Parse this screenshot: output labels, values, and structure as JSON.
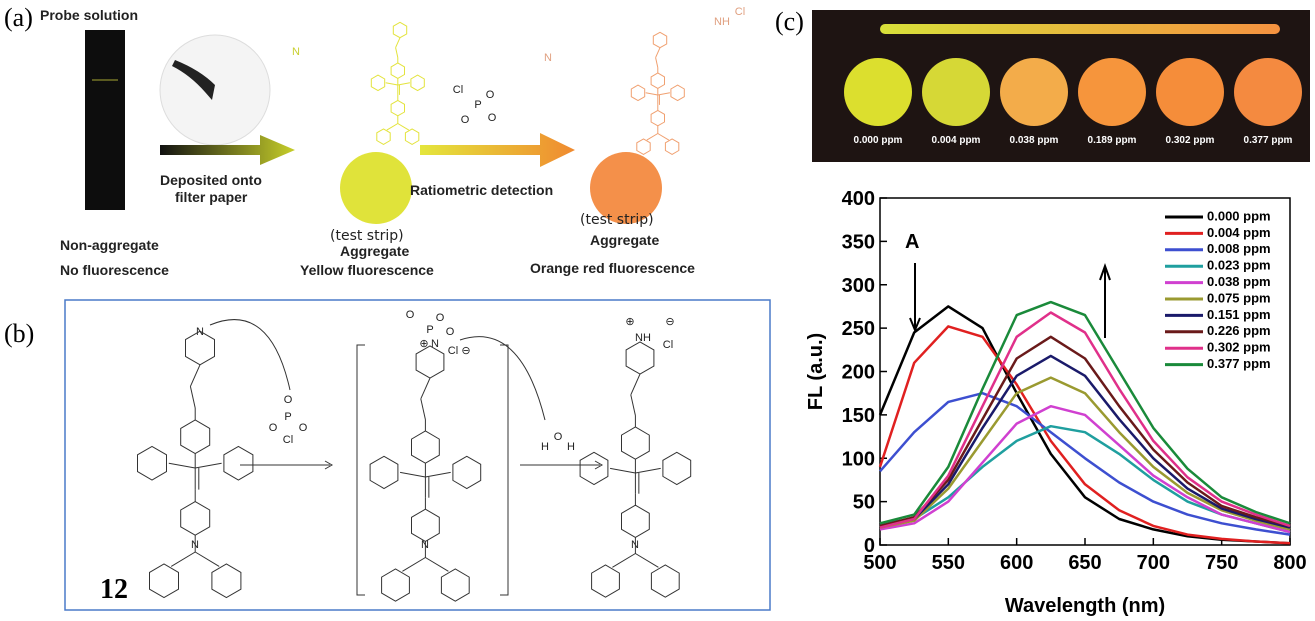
{
  "panel_a": {
    "label": "(a)",
    "probe_solution": "Probe solution",
    "deposited_line1": "Deposited onto",
    "deposited_line2": "filter paper",
    "ratiometric": "Ratiometric detection",
    "test_strip_1": "(test strip)",
    "test_strip_2": "(test strip)",
    "aggregate_1": "Aggregate",
    "aggregate_2": "Aggregate",
    "non_aggregate": "Non-aggregate",
    "no_fluorescence": "No fluorescence",
    "yellow_fluorescence": "Yellow fluorescence",
    "orange_fluorescence": "Orange red fluorescence",
    "atoms": [
      "Cl",
      "P",
      "O",
      "O",
      "O",
      "N",
      "NH",
      "Cl"
    ]
  },
  "panel_b": {
    "label": "(b)",
    "compound": "12",
    "atoms": [
      "N",
      "O",
      "P",
      "O",
      "O",
      "Cl",
      "O",
      "O",
      "P",
      "O",
      "N",
      "Cl",
      "⊕",
      "⊖",
      "H",
      "O",
      "H",
      "NH",
      "Cl",
      "⊕",
      "⊖",
      "N",
      "N",
      "N"
    ]
  },
  "panel_c": {
    "label": "(c)",
    "strip_labels": [
      "0.000 ppm",
      "0.004 ppm",
      "0.038 ppm",
      "0.189 ppm",
      "0.302 ppm",
      "0.377 ppm"
    ]
  },
  "chart_data": {
    "type": "line",
    "xlabel": "Wavelength (nm)",
    "ylabel": "FL (a.u.)",
    "annotation": "A",
    "xlim": [
      500,
      800
    ],
    "ylim": [
      0,
      400
    ],
    "xticks": [
      500,
      550,
      600,
      650,
      700,
      750,
      800
    ],
    "yticks": [
      0,
      50,
      100,
      150,
      200,
      250,
      300,
      350,
      400
    ],
    "x": [
      500,
      525,
      550,
      575,
      600,
      625,
      650,
      675,
      700,
      725,
      750,
      775,
      800
    ],
    "series": [
      {
        "name": "0.000 ppm",
        "color": "#000000",
        "values": [
          150,
          245,
          275,
          250,
          175,
          105,
          55,
          30,
          18,
          10,
          6,
          4,
          2
        ]
      },
      {
        "name": "0.004 ppm",
        "color": "#e02020",
        "values": [
          90,
          210,
          252,
          240,
          185,
          120,
          70,
          40,
          22,
          12,
          7,
          4,
          2
        ]
      },
      {
        "name": "0.008 ppm",
        "color": "#3d4fd0",
        "values": [
          85,
          130,
          165,
          175,
          160,
          130,
          100,
          72,
          50,
          35,
          25,
          18,
          12
        ]
      },
      {
        "name": "0.023 ppm",
        "color": "#1f9f9f",
        "values": [
          25,
          30,
          55,
          90,
          120,
          137,
          130,
          105,
          75,
          50,
          35,
          25,
          15
        ]
      },
      {
        "name": "0.038 ppm",
        "color": "#d040d0",
        "values": [
          18,
          25,
          50,
          95,
          140,
          160,
          150,
          115,
          80,
          55,
          35,
          25,
          15
        ]
      },
      {
        "name": "0.075 ppm",
        "color": "#9a9a30",
        "values": [
          20,
          28,
          65,
          120,
          175,
          193,
          175,
          130,
          90,
          60,
          40,
          28,
          18
        ]
      },
      {
        "name": "0.151 ppm",
        "color": "#1a1a6a",
        "values": [
          22,
          30,
          70,
          135,
          195,
          218,
          195,
          145,
          100,
          65,
          42,
          30,
          20
        ]
      },
      {
        "name": "0.226 ppm",
        "color": "#6a1a1a",
        "values": [
          22,
          32,
          75,
          145,
          215,
          240,
          215,
          160,
          110,
          72,
          45,
          32,
          22
        ]
      },
      {
        "name": "0.302 ppm",
        "color": "#e0308a",
        "values": [
          20,
          30,
          80,
          160,
          240,
          268,
          245,
          180,
          120,
          78,
          50,
          35,
          22
        ]
      },
      {
        "name": "0.377 ppm",
        "color": "#1a8a3a",
        "values": [
          25,
          35,
          90,
          180,
          265,
          280,
          265,
          200,
          135,
          88,
          55,
          38,
          25
        ]
      }
    ]
  }
}
